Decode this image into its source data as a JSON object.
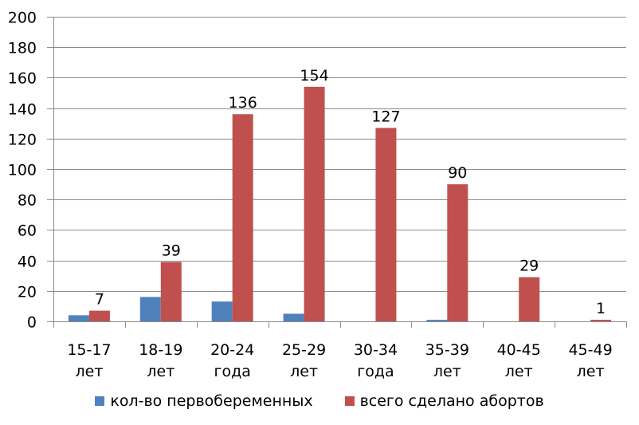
{
  "chart_data": {
    "type": "bar",
    "title": "",
    "xlabel": "",
    "ylabel": "",
    "ylim": [
      0,
      200
    ],
    "yticks": [
      0,
      20,
      40,
      60,
      80,
      100,
      120,
      140,
      160,
      180,
      200
    ],
    "grid": true,
    "legend_position": "bottom",
    "categories": [
      "15-17 лет",
      "18-19 лет",
      "20-24 года",
      "25-29 лет",
      "30-34 года",
      "35-39 лет",
      "40-45 лет",
      "45-49 лет"
    ],
    "category_lines": [
      [
        "15-17",
        "лет"
      ],
      [
        "18-19",
        "лет"
      ],
      [
        "20-24",
        "года"
      ],
      [
        "25-29",
        "лет"
      ],
      [
        "30-34",
        "года"
      ],
      [
        "35-39",
        "лет"
      ],
      [
        "40-45",
        "лет"
      ],
      [
        "45-49",
        "лет"
      ]
    ],
    "series": [
      {
        "name": "кол-во первобеременных",
        "color": "#4F81BD",
        "values": [
          4,
          16,
          13,
          5,
          0,
          1,
          0,
          0
        ],
        "show_labels": false
      },
      {
        "name": "всего сделано абортов",
        "color": "#C0504D",
        "values": [
          7,
          39,
          136,
          154,
          127,
          90,
          29,
          1
        ],
        "show_labels": true
      }
    ]
  }
}
